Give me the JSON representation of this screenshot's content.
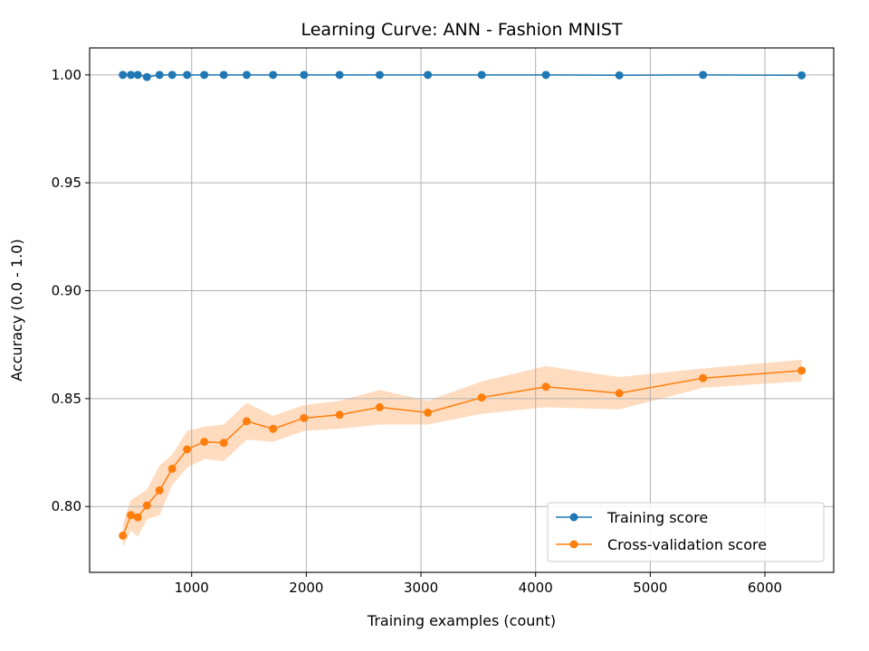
{
  "chart_data": {
    "type": "line",
    "title": "Learning Curve: ANN - Fashion MNIST",
    "xlabel": "Training examples (count)",
    "ylabel": "Accuracy (0.0 - 1.0)",
    "xlim": [
      110,
      6600
    ],
    "ylim": [
      0.7695,
      1.0125
    ],
    "xticks": [
      1000,
      2000,
      3000,
      4000,
      5000,
      6000
    ],
    "xtick_labels": [
      "1000",
      "2000",
      "3000",
      "4000",
      "5000",
      "6000"
    ],
    "yticks": [
      0.8,
      0.85,
      0.9,
      0.95,
      1.0
    ],
    "ytick_labels": [
      "0.80",
      "0.85",
      "0.90",
      "0.95",
      "1.00"
    ],
    "grid": true,
    "legend_position": "lower-right",
    "x": [
      400,
      470,
      530,
      610,
      720,
      830,
      960,
      1110,
      1280,
      1480,
      1710,
      1980,
      2290,
      2640,
      3060,
      3530,
      4090,
      4730,
      5460,
      6320
    ],
    "series": [
      {
        "name": "Training score",
        "color": "#1f77b4",
        "values": [
          1.0,
          1.0,
          1.0,
          0.999,
          1.0,
          1.0,
          1.0,
          1.0,
          1.0,
          1.0,
          1.0,
          1.0,
          1.0,
          1.0,
          1.0,
          1.0,
          1.0,
          0.9998,
          1.0,
          0.9998
        ],
        "band": null
      },
      {
        "name": "Cross-validation score",
        "color": "#ff7f0e",
        "values": [
          0.7865,
          0.796,
          0.795,
          0.8005,
          0.8075,
          0.8175,
          0.8265,
          0.83,
          0.8295,
          0.8395,
          0.836,
          0.841,
          0.8425,
          0.846,
          0.8435,
          0.8505,
          0.8555,
          0.8525,
          0.8595,
          0.863
        ],
        "band": {
          "color": "#ffdcc0",
          "upper": [
            0.792,
            0.803,
            0.805,
            0.808,
            0.819,
            0.824,
            0.835,
            0.837,
            0.838,
            0.848,
            0.842,
            0.847,
            0.849,
            0.854,
            0.849,
            0.858,
            0.865,
            0.86,
            0.864,
            0.868
          ],
          "lower": [
            0.781,
            0.789,
            0.786,
            0.794,
            0.796,
            0.81,
            0.818,
            0.822,
            0.821,
            0.831,
            0.83,
            0.835,
            0.836,
            0.838,
            0.838,
            0.843,
            0.846,
            0.845,
            0.855,
            0.858
          ]
        }
      }
    ]
  }
}
